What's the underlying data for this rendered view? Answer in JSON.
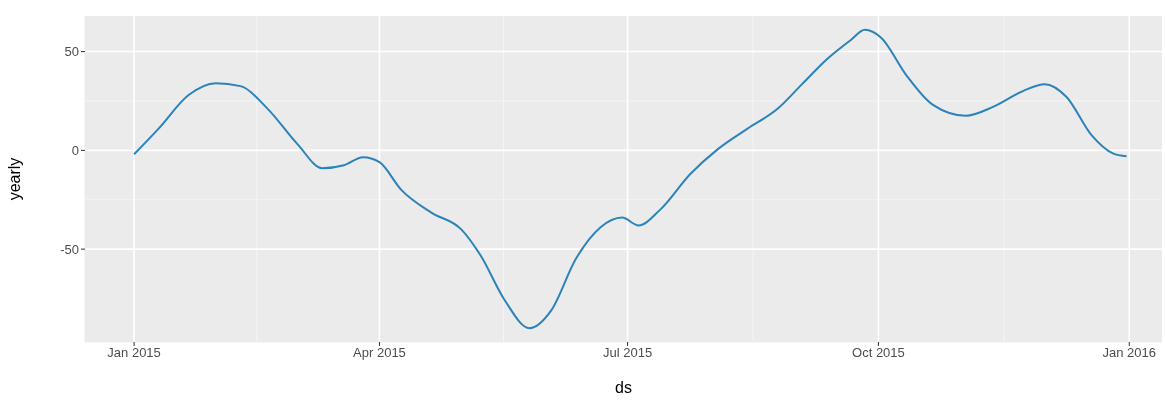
{
  "chart_data": {
    "type": "line",
    "xlabel": "ds",
    "ylabel": "yearly",
    "x": [
      "2015-01-01",
      "2015-01-10",
      "2015-01-21",
      "2015-01-31",
      "2015-02-09",
      "2015-02-19",
      "2015-03-02",
      "2015-03-11",
      "2015-03-19",
      "2015-03-26",
      "2015-04-01",
      "2015-04-09",
      "2015-04-20",
      "2015-05-01",
      "2015-05-08",
      "2015-05-17",
      "2015-05-26",
      "2015-06-03",
      "2015-06-12",
      "2015-06-21",
      "2015-06-29",
      "2015-07-05",
      "2015-07-13",
      "2015-07-24",
      "2015-08-03",
      "2015-08-14",
      "2015-08-25",
      "2015-09-03",
      "2015-09-12",
      "2015-09-21",
      "2015-09-26",
      "2015-10-02",
      "2015-10-11",
      "2015-10-21",
      "2015-11-02",
      "2015-11-12",
      "2015-11-23",
      "2015-12-01",
      "2015-12-09",
      "2015-12-18",
      "2015-12-26",
      "2015-12-31"
    ],
    "series": [
      {
        "color": "#2b83ba",
        "values": [
          -2,
          11,
          28,
          34,
          32.5,
          21,
          3,
          -9,
          -7.5,
          -3.5,
          -6,
          -20,
          -31.5,
          -40,
          -53,
          -76,
          -90,
          -81,
          -55,
          -39,
          -34,
          -38,
          -30,
          -12,
          0.5,
          11,
          21,
          33.5,
          46,
          56,
          61,
          57,
          38.5,
          23,
          17.5,
          22,
          30,
          33.5,
          27,
          8,
          -1.5,
          -3
        ]
      }
    ],
    "xlim": [
      "2014-12-14",
      "2016-01-13"
    ],
    "xticks": [
      {
        "value": "2015-01-01",
        "label": "Jan 2015"
      },
      {
        "value": "2015-04-01",
        "label": "Apr 2015"
      },
      {
        "value": "2015-07-01",
        "label": "Jul 2015"
      },
      {
        "value": "2015-10-01",
        "label": "Oct 2015"
      },
      {
        "value": "2016-01-01",
        "label": "Jan 2016"
      }
    ],
    "ylim": [
      -97,
      68
    ],
    "yticks": [
      -50,
      0,
      50
    ],
    "grid": true,
    "legend": false,
    "marker": "none",
    "line_style": "solid"
  }
}
